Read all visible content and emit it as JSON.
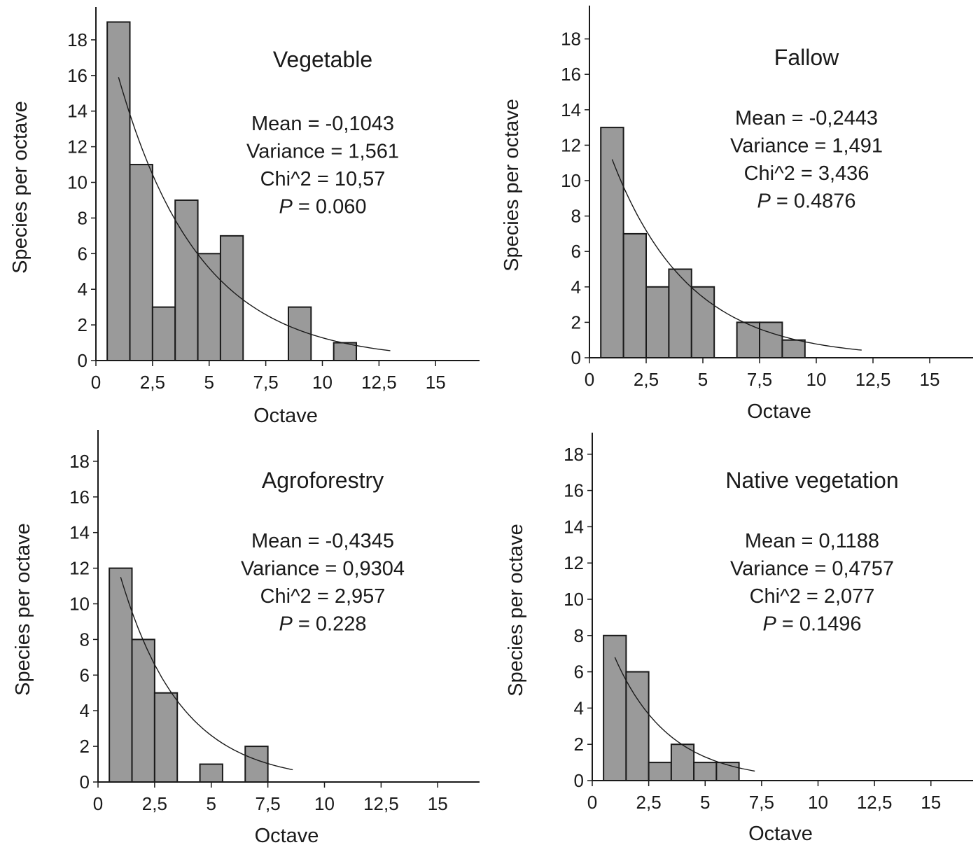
{
  "chart_data": [
    {
      "type": "bar",
      "title": "Vegetable",
      "xlabel": "Octave",
      "ylabel": "Species per octave",
      "xlim": [
        0,
        17
      ],
      "ylim": [
        0,
        20
      ],
      "xticks": [
        0,
        2.5,
        5,
        7.5,
        10,
        12.5,
        15
      ],
      "xtick_labels": [
        "0",
        "2,5",
        "5",
        "7,5",
        "10",
        "12,5",
        "15"
      ],
      "yticks": [
        0,
        2,
        4,
        6,
        8,
        10,
        12,
        14,
        16,
        18
      ],
      "yticks_labels": [
        "0",
        "2",
        "4",
        "6",
        "8",
        "10",
        "12",
        "14",
        "16",
        "18"
      ],
      "categories": [
        1,
        2,
        3,
        4,
        5,
        6,
        7,
        8,
        9,
        10,
        11
      ],
      "values": [
        19,
        11,
        3,
        9,
        6,
        7,
        0,
        0,
        3,
        0,
        1
      ],
      "fit_curve": {
        "x_start": 1,
        "x_end": 13,
        "y_start": 15.9
      },
      "stats": {
        "mean": "Mean = -0,1043",
        "variance": "Variance = 1,561",
        "chi2": "Chi^2 = 10,57",
        "p_label": "P",
        "p_value": " = 0.060"
      }
    },
    {
      "type": "bar",
      "title": "Fallow",
      "xlabel": "Octave",
      "ylabel": "Species per octave",
      "xlim": [
        0,
        17
      ],
      "ylim": [
        0,
        20
      ],
      "xticks": [
        0,
        2.5,
        5,
        7.5,
        10,
        12.5,
        15
      ],
      "xtick_labels": [
        "0",
        "2,5",
        "5",
        "7,5",
        "10",
        "12,5",
        "15"
      ],
      "yticks": [
        0,
        2,
        4,
        6,
        8,
        10,
        12,
        14,
        16,
        18
      ],
      "yticks_labels": [
        "0",
        "2",
        "4",
        "6",
        "8",
        "10",
        "12",
        "14",
        "16",
        "18"
      ],
      "categories": [
        1,
        2,
        3,
        4,
        5,
        6,
        7,
        8,
        9
      ],
      "values": [
        13,
        7,
        4,
        5,
        4,
        0,
        2,
        2,
        1
      ],
      "fit_curve": {
        "x_start": 1,
        "x_end": 12,
        "y_start": 11.2
      },
      "stats": {
        "mean": "Mean = -0,2443",
        "variance": "Variance = 1,491",
        "chi2": "Chi^2 = 3,436",
        "p_label": "P",
        "p_value": " = 0.4876"
      }
    },
    {
      "type": "bar",
      "title": "Agroforestry",
      "xlabel": "Octave",
      "ylabel": "Species per octave",
      "xlim": [
        0,
        17
      ],
      "ylim": [
        0,
        20
      ],
      "xticks": [
        0,
        2.5,
        5,
        7.5,
        10,
        12.5,
        15
      ],
      "xtick_labels": [
        "0",
        "2,5",
        "5",
        "7,5",
        "10",
        "12,5",
        "15"
      ],
      "yticks": [
        0,
        2,
        4,
        6,
        8,
        10,
        12,
        14,
        16,
        18
      ],
      "yticks_labels": [
        "0",
        "2",
        "4",
        "6",
        "8",
        "10",
        "12",
        "14",
        "16",
        "18"
      ],
      "categories": [
        1,
        2,
        3,
        4,
        5,
        6,
        7
      ],
      "values": [
        12,
        8,
        5,
        0,
        1,
        0,
        2
      ],
      "fit_curve": {
        "x_start": 1,
        "x_end": 8.6,
        "y_start": 11.5
      },
      "stats": {
        "mean": "Mean = -0,4345",
        "variance": "Variance = 0,9304",
        "chi2": "Chi^2 = 2,957",
        "p_label": "P",
        "p_value": " = 0.228"
      }
    },
    {
      "type": "bar",
      "title": "Native vegetation",
      "xlabel": "Octave",
      "ylabel": "Species per octave",
      "xlim": [
        0,
        17
      ],
      "ylim": [
        0,
        20
      ],
      "xticks": [
        0,
        2.5,
        5,
        7.5,
        10,
        12.5,
        15
      ],
      "xtick_labels": [
        "0",
        "2,5",
        "5",
        "7,5",
        "10",
        "12,5",
        "15"
      ],
      "yticks": [
        0,
        2,
        4,
        6,
        8,
        10,
        12,
        14,
        16,
        18
      ],
      "yticks_labels": [
        "0",
        "2",
        "4",
        "6",
        "8",
        "10",
        "12",
        "14",
        "16",
        "18"
      ],
      "categories": [
        1,
        2,
        3,
        4,
        5,
        6
      ],
      "values": [
        8,
        6,
        1,
        2,
        1,
        1
      ],
      "fit_curve": {
        "x_start": 1,
        "x_end": 7.2,
        "y_start": 6.8
      },
      "stats": {
        "mean": "Mean = 0,1188",
        "variance": "Variance = 0,4757",
        "chi2": "Chi^2 = 2,077",
        "p_label": "P",
        "p_value": " = 0.1496"
      }
    }
  ]
}
